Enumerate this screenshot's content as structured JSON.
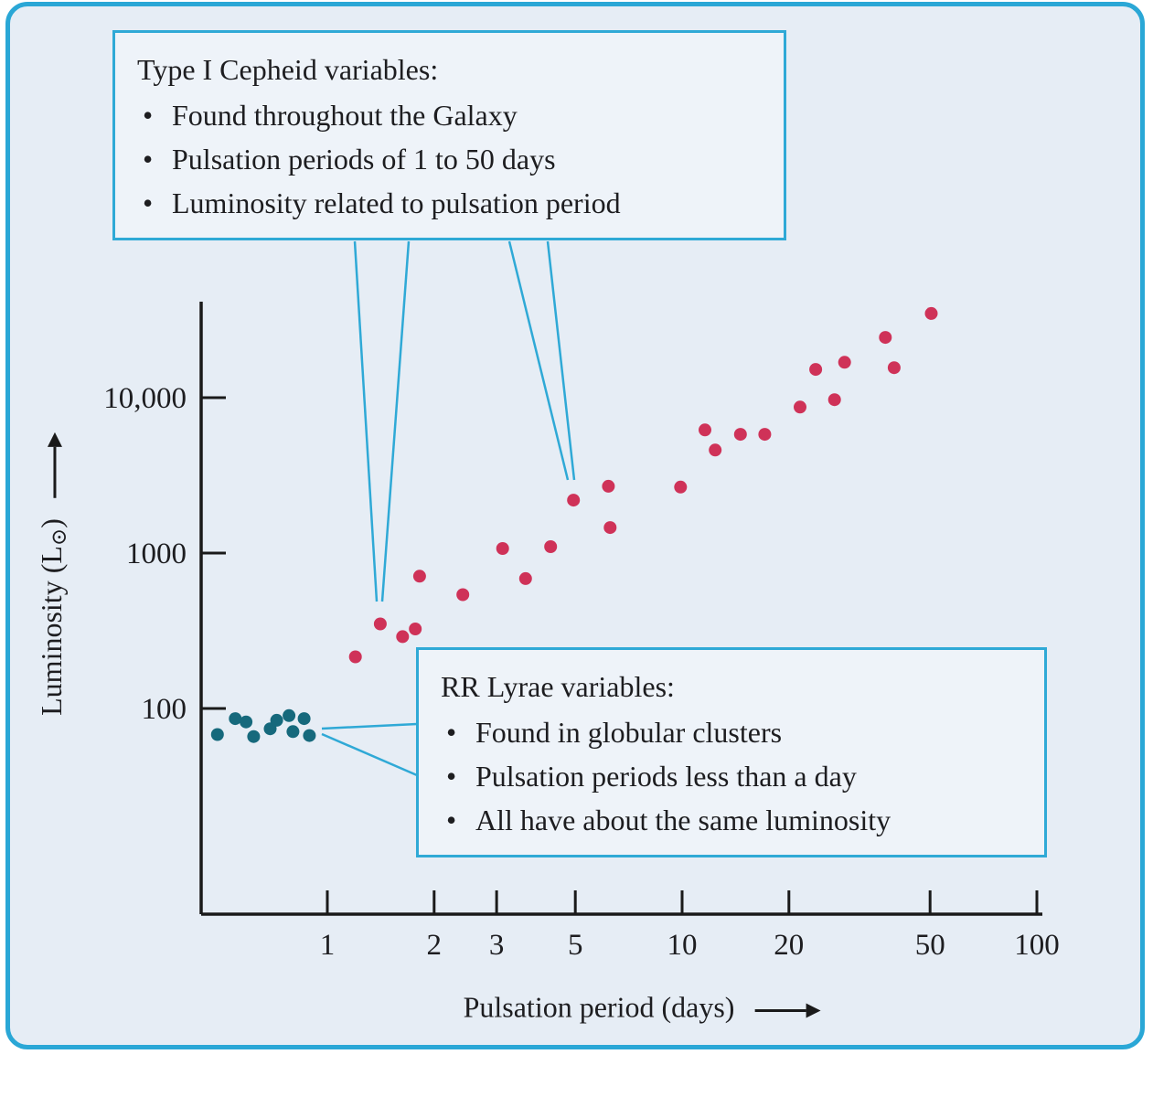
{
  "colors": {
    "panel_background": "#e6edf5",
    "panel_border": "#2aa7d6",
    "callout_background": "#eef3f9",
    "callout_border": "#2fa9d6",
    "axis": "#1a1a1a",
    "text": "#1d1d20",
    "cepheid_point": "#cf3258",
    "rr_lyrae_point": "#16697c"
  },
  "callouts": {
    "cepheid": {
      "title": "Type I Cepheid variables:",
      "bullets": [
        "Found throughout the Galaxy",
        "Pulsation periods of 1 to 50 days",
        "Luminosity related to pulsation period"
      ]
    },
    "rr_lyrae": {
      "title": "RR Lyrae variables:",
      "bullets": [
        "Found in globular clusters",
        "Pulsation periods less than a day",
        "All have about the same luminosity"
      ]
    }
  },
  "chart_data": {
    "type": "scatter",
    "x_scale": "log",
    "y_scale": "log",
    "xlabel": "Pulsation period (days)",
    "ylabel": "Luminosity (L⊙)",
    "ylabel_parts": {
      "pre": "Luminosity (L",
      "sun": "⊙",
      "post": ")"
    },
    "x_ticks": {
      "labels": [
        "1",
        "2",
        "3",
        "5",
        "10",
        "20",
        "50",
        "100"
      ],
      "values": [
        1,
        2,
        3,
        5,
        10,
        20,
        50,
        100
      ]
    },
    "y_ticks": {
      "labels": [
        "100",
        "1000",
        "10,000"
      ],
      "values": [
        100,
        1000,
        10000
      ]
    },
    "xlim": [
      0.3,
      100
    ],
    "ylim": [
      20,
      60000
    ],
    "grid": false,
    "legend": "none",
    "series": [
      {
        "name": "RR Lyrae variables",
        "color": "#16697c",
        "point_name": "rr-lyrae-point",
        "points": [
          [
            0.49,
            68
          ],
          [
            0.55,
            86
          ],
          [
            0.59,
            82
          ],
          [
            0.62,
            66
          ],
          [
            0.69,
            74
          ],
          [
            0.72,
            84
          ],
          [
            0.78,
            90
          ],
          [
            0.8,
            71
          ],
          [
            0.86,
            86
          ],
          [
            0.89,
            67
          ]
        ]
      },
      {
        "name": "Type I Cepheid variables",
        "color": "#cf3258",
        "point_name": "cepheid-point",
        "points": [
          [
            1.2,
            215
          ],
          [
            1.41,
            350
          ],
          [
            1.63,
            290
          ],
          [
            1.77,
            325
          ],
          [
            1.82,
            710
          ],
          [
            2.41,
            540
          ],
          [
            3.12,
            1070
          ],
          [
            3.62,
            685
          ],
          [
            4.26,
            1100
          ],
          [
            4.94,
            2190
          ],
          [
            6.2,
            2690
          ],
          [
            6.27,
            1460
          ],
          [
            9.9,
            2660
          ],
          [
            11.6,
            6200
          ],
          [
            12.4,
            4600
          ],
          [
            14.6,
            5810
          ],
          [
            17.1,
            5810
          ],
          [
            21.5,
            8700
          ],
          [
            23.8,
            15200
          ],
          [
            26.9,
            9700
          ],
          [
            28.7,
            16900
          ],
          [
            37.4,
            24400
          ],
          [
            39.6,
            15600
          ],
          [
            50.4,
            34800
          ]
        ]
      }
    ]
  }
}
